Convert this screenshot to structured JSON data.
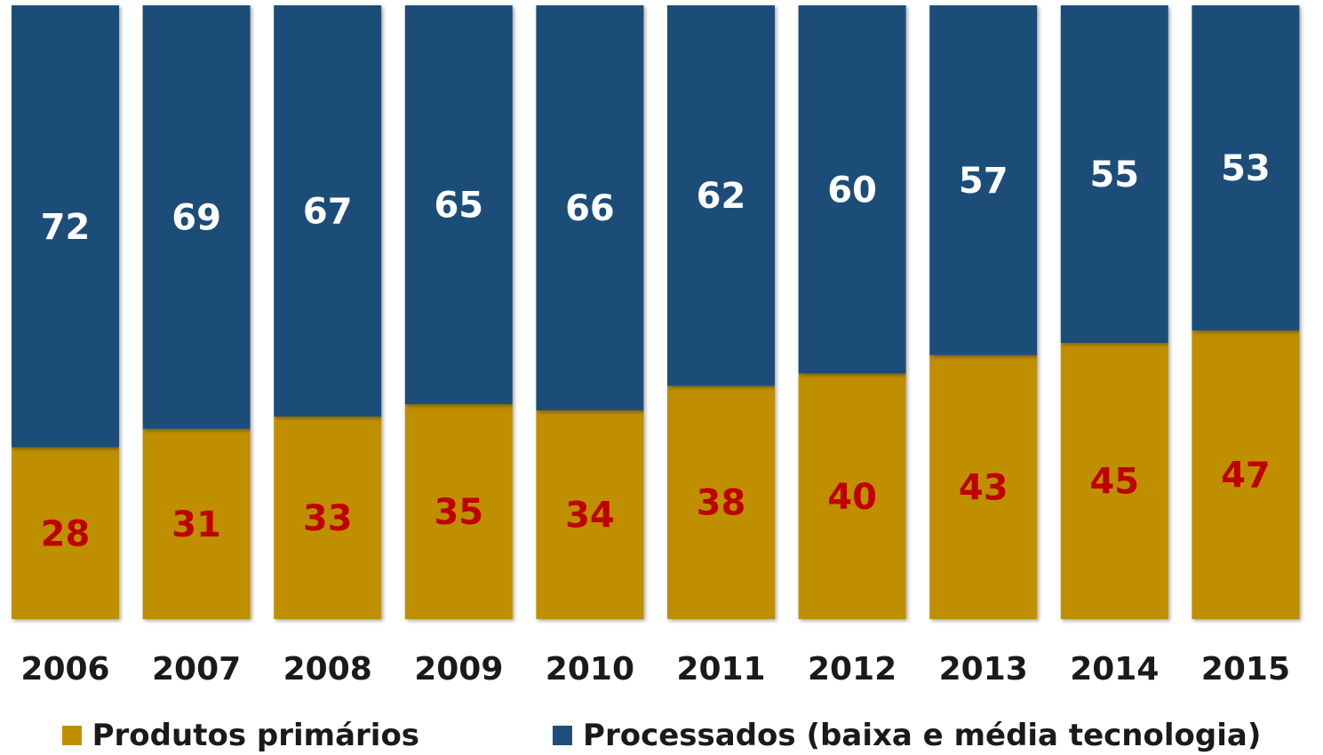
{
  "chart_data": {
    "type": "bar",
    "stacked": true,
    "categories": [
      "2006",
      "2007",
      "2008",
      "2009",
      "2010",
      "2011",
      "2012",
      "2013",
      "2014",
      "2015"
    ],
    "series": [
      {
        "name": "Produtos primários",
        "values": [
          28,
          31,
          33,
          35,
          34,
          38,
          40,
          43,
          45,
          47
        ],
        "color": "#BF8F00",
        "label_color": "#C00000"
      },
      {
        "name": "Processados (baixa e média tecnologia)",
        "values": [
          72,
          69,
          67,
          65,
          66,
          62,
          60,
          57,
          55,
          53
        ],
        "color": "#1F4E79",
        "label_color": "#FFFFFF"
      }
    ],
    "title": "",
    "xlabel": "",
    "ylabel": "",
    "ylim": [
      0,
      100
    ],
    "grid": false,
    "legend_position": "bottom"
  }
}
